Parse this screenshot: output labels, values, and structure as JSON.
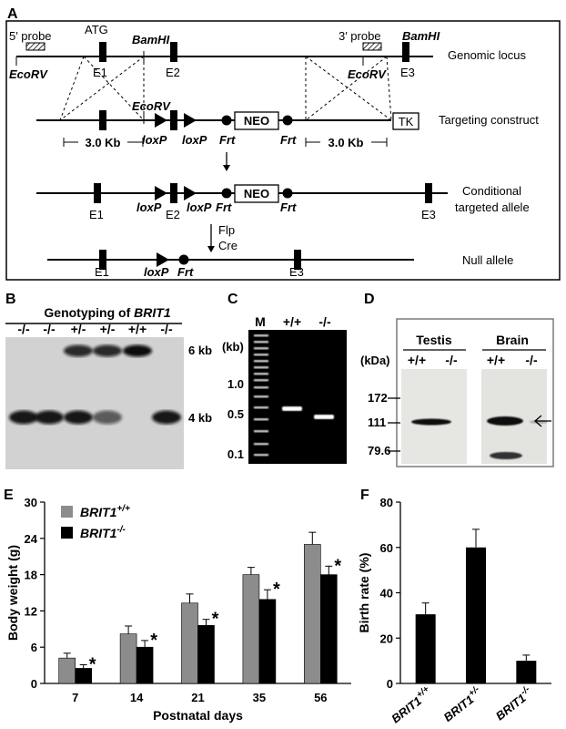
{
  "panels": {
    "A": {
      "label": "A",
      "atg": "ATG",
      "probe5": "5′ probe",
      "probe3": "3′ probe",
      "bamhi": "BamHI",
      "ecorv": "EcoRV",
      "ecorv_construct": "EcoRV",
      "exons": {
        "e1": "E1",
        "e2": "E2",
        "e3": "E3"
      },
      "loxp": "loxP",
      "frt": "Frt",
      "neo": "NEO",
      "tk": "TK",
      "kb_left": "3.0 Kb",
      "kb_right": "3.0 Kb",
      "flp": "Flp",
      "cre": "Cre",
      "rows": {
        "genomic": "Genomic locus",
        "targeting": "Targeting construct",
        "conditional_1": "Conditional",
        "conditional_2": "targeted allele",
        "null": "Null allele"
      }
    },
    "B": {
      "label": "B",
      "title_prefix": "Genotyping of ",
      "title_gene": "BRIT1",
      "lanes": [
        "-/-",
        "-/-",
        "+/-",
        "+/-",
        "+/+",
        "-/-"
      ],
      "band_upper": "6 kb",
      "band_lower": "4 kb"
    },
    "C": {
      "label": "C",
      "lanes": [
        "M",
        "+/+",
        "-/-"
      ],
      "unit": "(kb)",
      "ticks": [
        "1.0",
        "0.5",
        "0.1"
      ]
    },
    "D": {
      "label": "D",
      "tissues": [
        "Testis",
        "Brain"
      ],
      "unit": "(kDa)",
      "lanes": [
        "+/+",
        "-/-",
        "+/+",
        "-/-"
      ],
      "ticks": [
        "172",
        "111",
        "79.6"
      ]
    }
  },
  "chart_data": [
    {
      "panel": "E",
      "type": "bar",
      "ylabel": "Body weight (g)",
      "xlabel": "Postnatal days",
      "categories": [
        "7",
        "14",
        "21",
        "35",
        "56"
      ],
      "ylim": [
        0,
        30
      ],
      "yticks": [
        "0",
        "6",
        "12",
        "18",
        "24",
        "30"
      ],
      "series": [
        {
          "name": "BRIT1",
          "superscript": "+/+",
          "color": "#8c8c8c",
          "values": [
            4.2,
            8.2,
            13.3,
            18.0,
            23.0
          ],
          "err": [
            0.8,
            1.3,
            1.5,
            1.2,
            2.0
          ]
        },
        {
          "name": "BRIT1",
          "superscript": "-/-",
          "color": "#000000",
          "values": [
            2.5,
            6.0,
            9.6,
            13.9,
            18.0
          ],
          "err": [
            0.6,
            1.1,
            1.0,
            1.6,
            1.4
          ]
        }
      ],
      "annotations": [
        "*",
        "*",
        "*",
        "*",
        "*"
      ],
      "legend": "top-left"
    },
    {
      "panel": "F",
      "type": "bar",
      "ylabel": "Birth rate (%)",
      "categories": [
        "+/+",
        "+/-",
        "-/-"
      ],
      "category_prefix": "BRIT1",
      "ylim": [
        0,
        80
      ],
      "yticks": [
        "0",
        "20",
        "40",
        "60",
        "80"
      ],
      "values": [
        30.5,
        60.0,
        10.0
      ],
      "err": [
        5.0,
        8.0,
        2.5
      ],
      "color": "#000000"
    }
  ]
}
